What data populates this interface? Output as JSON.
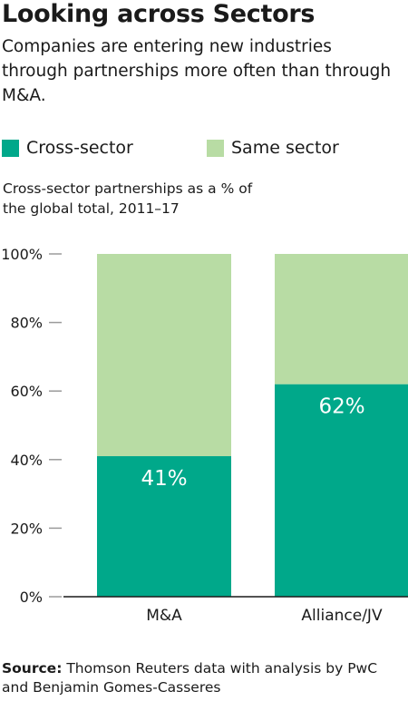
{
  "header": {
    "title": "Looking across Sectors",
    "subtitle": "Companies are entering new industries through partnerships more often than through M&A."
  },
  "legend": [
    {
      "label": "Cross-sector",
      "color": "#00a88a"
    },
    {
      "label": "Same sector",
      "color": "#b8dca4"
    }
  ],
  "note": "Cross-sector partnerships as a % of the global total, 2011–17",
  "chart_data": {
    "type": "bar",
    "stacked": true,
    "categories": [
      "M&A",
      "Alliance/JV"
    ],
    "series": [
      {
        "name": "Cross-sector",
        "values": [
          41,
          62
        ],
        "color": "#00a88a"
      },
      {
        "name": "Same sector",
        "values": [
          59,
          38
        ],
        "color": "#b8dca4"
      }
    ],
    "data_labels": [
      "41%",
      "62%"
    ],
    "y_ticks": [
      "0%",
      "20%",
      "40%",
      "60%",
      "80%",
      "100%"
    ],
    "ylim": [
      0,
      100
    ],
    "grid": false,
    "legend_position": "top"
  },
  "source": {
    "label": "Source:",
    "text": "Thomson Reuters data with analysis by PwC and Benjamin Gomes-Casseres"
  }
}
